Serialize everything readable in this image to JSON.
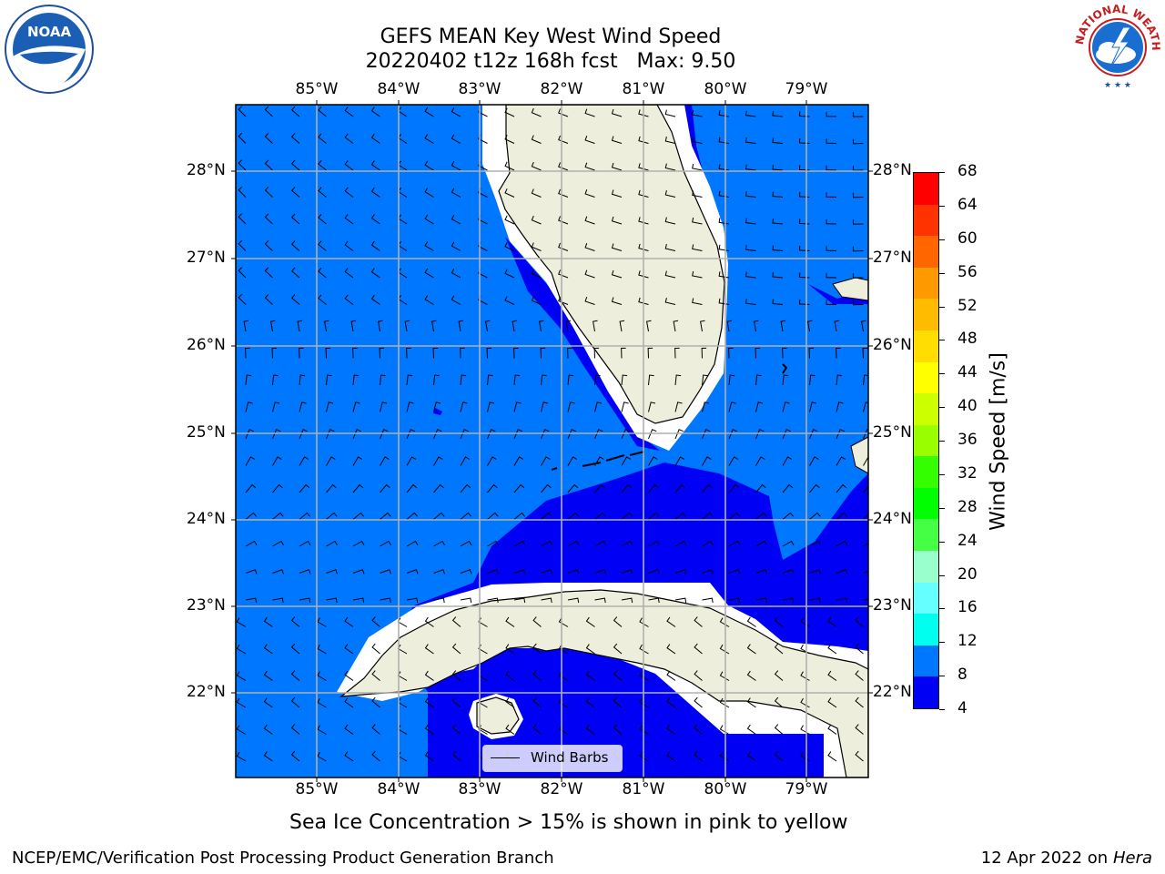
{
  "title": {
    "line1": "GEFS MEAN Key West Wind Speed",
    "line2": "20220402 t12z 168h fcst   Max: 9.50"
  },
  "logos": {
    "left_text": "NOAA",
    "right_text": "NATIONAL WEATHER SERVICE"
  },
  "map": {
    "lon_ticks": [
      "85°W",
      "84°W",
      "83°W",
      "82°W",
      "81°W",
      "80°W",
      "79°W"
    ],
    "lat_ticks": [
      "28°N",
      "27°N",
      "26°N",
      "25°N",
      "24°N",
      "23°N",
      "22°N"
    ],
    "lon_range": [
      -86.0,
      -78.25
    ],
    "lat_range": [
      21.1,
      28.75
    ],
    "legend_label": "Wind Barbs",
    "colors": {
      "land": "#eeeedc",
      "band_4_8": "#0000f5",
      "band_8_12": "#0077ff",
      "grid": "#b0b0b0"
    }
  },
  "colorbar": {
    "label": "Wind Speed [m/s]",
    "ticks": [
      "68",
      "64",
      "60",
      "56",
      "52",
      "48",
      "44",
      "40",
      "36",
      "32",
      "28",
      "24",
      "20",
      "16",
      "12",
      "8",
      "4"
    ],
    "colors": [
      "#ff0000",
      "#ff3300",
      "#ff6600",
      "#ff9900",
      "#ffbb00",
      "#ffdd00",
      "#ffff00",
      "#ccff00",
      "#99ff00",
      "#33ff00",
      "#00ff00",
      "#44ff44",
      "#99ffcc",
      "#66ffff",
      "#00ffee",
      "#0077ff",
      "#0000f5"
    ]
  },
  "note": "Sea Ice Concentration > 15% is shown in pink to yellow",
  "footer": {
    "left": "NCEP/EMC/Verification Post Processing Product Generation Branch",
    "right_date": "12 Apr 2022 on ",
    "right_host": "Hera"
  }
}
